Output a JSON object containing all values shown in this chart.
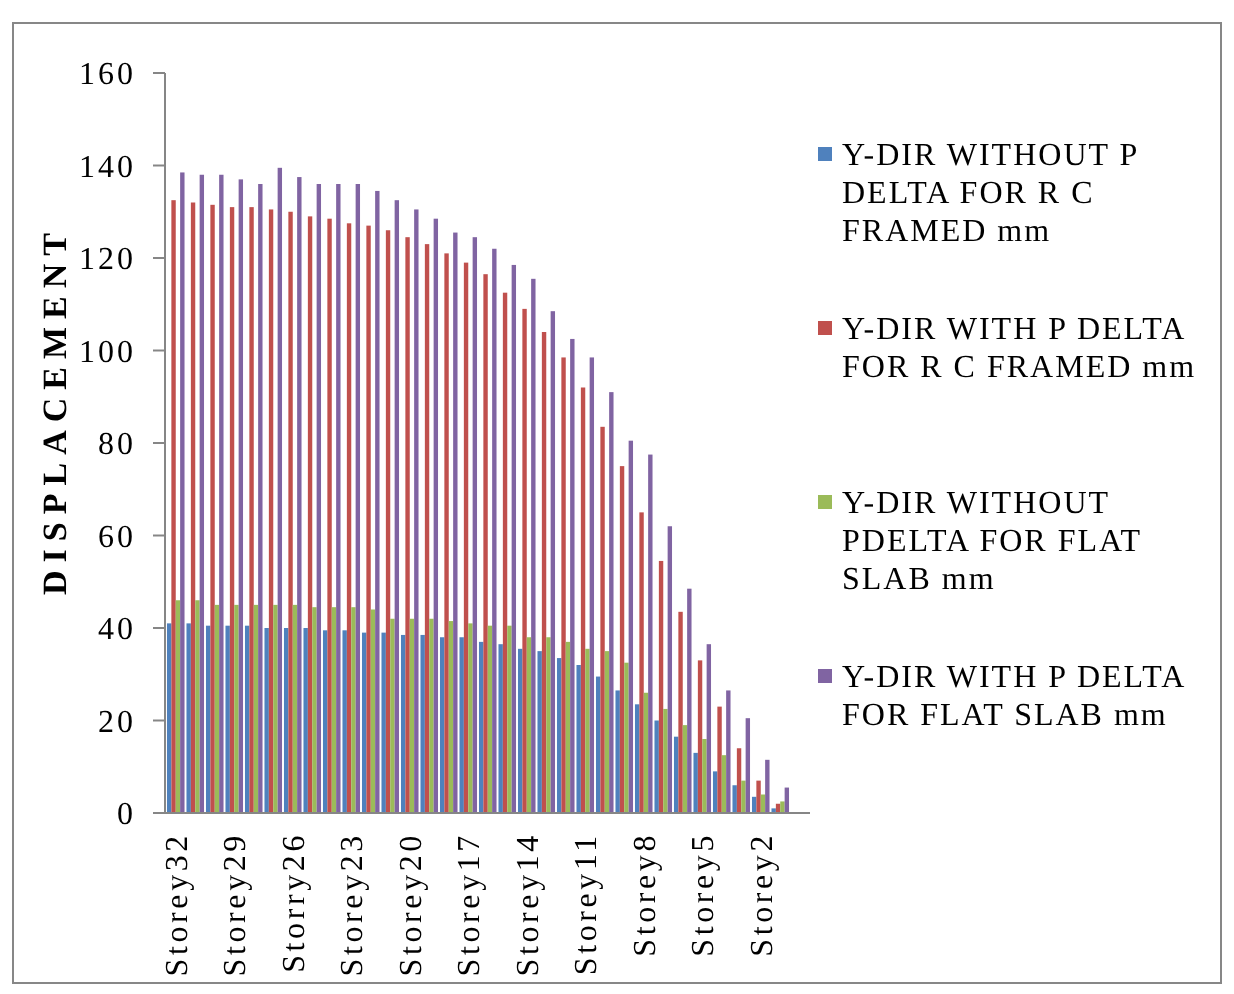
{
  "chart_data": {
    "type": "bar",
    "ylabel": "DISPLACEMENT",
    "categories": [
      "Storey32",
      null,
      null,
      "Storey29",
      null,
      null,
      "Storry26",
      null,
      null,
      "Storey23",
      null,
      null,
      "Storey20",
      null,
      null,
      "Storey17",
      null,
      null,
      "Storey14",
      null,
      null,
      "Storey11",
      null,
      null,
      "Storey8",
      null,
      null,
      "Storey5",
      null,
      null,
      "Storey2",
      null
    ],
    "series": [
      {
        "name": "Y-DIR WITHOUT P DELTA FOR R C FRAMED mm",
        "color": "#4f81bd",
        "values": [
          41,
          41,
          40.5,
          40.5,
          40.5,
          40,
          40,
          40,
          39.5,
          39.5,
          39,
          39,
          38.5,
          38.5,
          38,
          38,
          37,
          36.5,
          35.5,
          35,
          33.5,
          32,
          29.5,
          26.5,
          23.5,
          20,
          16.5,
          13,
          9,
          6,
          3.5,
          1
        ]
      },
      {
        "name": "Y-DIR WITH P DELTA FOR R C FRAMED mm",
        "color": "#c0504d",
        "values": [
          132.5,
          132,
          131.5,
          131,
          131,
          130.5,
          130,
          129,
          128.5,
          127.5,
          127,
          126,
          124.5,
          123,
          121,
          119,
          116.5,
          112.5,
          109,
          104,
          98.5,
          92,
          83.5,
          75,
          65,
          54.5,
          43.5,
          33,
          23,
          14,
          7,
          2
        ]
      },
      {
        "name": "Y-DIR WITHOUT PDELTA FOR FLAT SLAB mm",
        "color": "#9bbb59",
        "values": [
          46,
          46,
          45,
          45,
          45,
          45,
          45,
          44.5,
          44.5,
          44.5,
          44,
          42,
          42,
          42,
          41.5,
          41,
          40.5,
          40.5,
          38,
          38,
          37,
          35.5,
          35,
          32.5,
          26,
          22.5,
          19,
          16,
          12.5,
          7,
          4,
          2.5
        ]
      },
      {
        "name": "Y-DIR WITH P DELTA FOR FLAT SLAB mm",
        "color": "#8064a2",
        "values": [
          138.5,
          138,
          138,
          137,
          136,
          139.5,
          137.5,
          136,
          136,
          136,
          134.5,
          132.5,
          130.5,
          128.5,
          125.5,
          124.5,
          122,
          118.5,
          115.5,
          108.5,
          102.5,
          98.5,
          91,
          80.5,
          77.5,
          62,
          48.5,
          36.5,
          26.5,
          20.5,
          11.5,
          5.5
        ]
      }
    ],
    "ylim": [
      0,
      160
    ],
    "yticks": [
      0,
      20,
      40,
      60,
      80,
      100,
      120,
      140,
      160
    ],
    "legend": "right"
  }
}
